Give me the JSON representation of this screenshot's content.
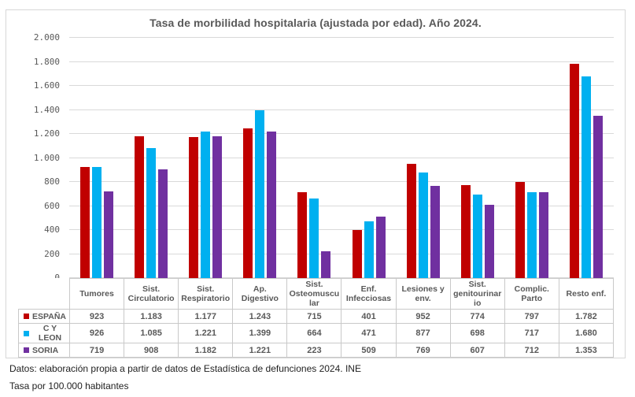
{
  "title": "Tasa de morbilidad hospitalaria (ajustada por edad). Año 2024.",
  "footer": {
    "line1": "Datos: elaboración propia a partir de datos de Estadística de defunciones 2024. INE",
    "line2": "Tasa por 100.000 habitantes"
  },
  "colors": {
    "espana": "#C00000",
    "cyleon": "#00B0F0",
    "soria": "#7030A0",
    "gridline": "#D9D9D9",
    "chart_text": "#595959",
    "table_border": "#C9C9C9"
  },
  "chart_data": {
    "type": "bar",
    "title": "Tasa de morbilidad hospitalaria (ajustada por edad). Año 2024.",
    "categories": [
      "Tumores",
      "Sist. Circulatorio",
      "Sist. Respiratorio",
      "Ap. Digestivo",
      "Sist. Osteomuscular",
      "Enf. Infecciosas",
      "Lesiones y env.",
      "Sist. genitourinario",
      "Complic. Parto",
      "Resto enf."
    ],
    "series": [
      {
        "name": "ESPAÑA",
        "color": "#C00000",
        "values": [
          923,
          1183,
          1177,
          1243,
          715,
          401,
          952,
          774,
          797,
          1782
        ],
        "display": [
          "923",
          "1.183",
          "1.177",
          "1.243",
          "715",
          "401",
          "952",
          "774",
          "797",
          "1.782"
        ]
      },
      {
        "name": "C Y LEON",
        "color": "#00B0F0",
        "values": [
          926,
          1085,
          1221,
          1399,
          664,
          471,
          877,
          698,
          717,
          1680
        ],
        "display": [
          "926",
          "1.085",
          "1.221",
          "1.399",
          "664",
          "471",
          "877",
          "698",
          "717",
          "1.680"
        ]
      },
      {
        "name": "SORIA",
        "color": "#7030A0",
        "values": [
          719,
          908,
          1182,
          1221,
          223,
          509,
          769,
          607,
          712,
          1353
        ],
        "display": [
          "719",
          "908",
          "1.182",
          "1.221",
          "223",
          "509",
          "769",
          "607",
          "712",
          "1.353"
        ]
      }
    ],
    "xlabel": "",
    "ylabel": "",
    "ylim": [
      0,
      2000
    ],
    "ytick_step": 200,
    "ytick_labels": [
      "0",
      "200",
      "400",
      "600",
      "800",
      "1.000",
      "1.200",
      "1.400",
      "1.600",
      "1.800",
      "2.000"
    ],
    "grid": true,
    "legend_position": "data-table-left-column"
  }
}
